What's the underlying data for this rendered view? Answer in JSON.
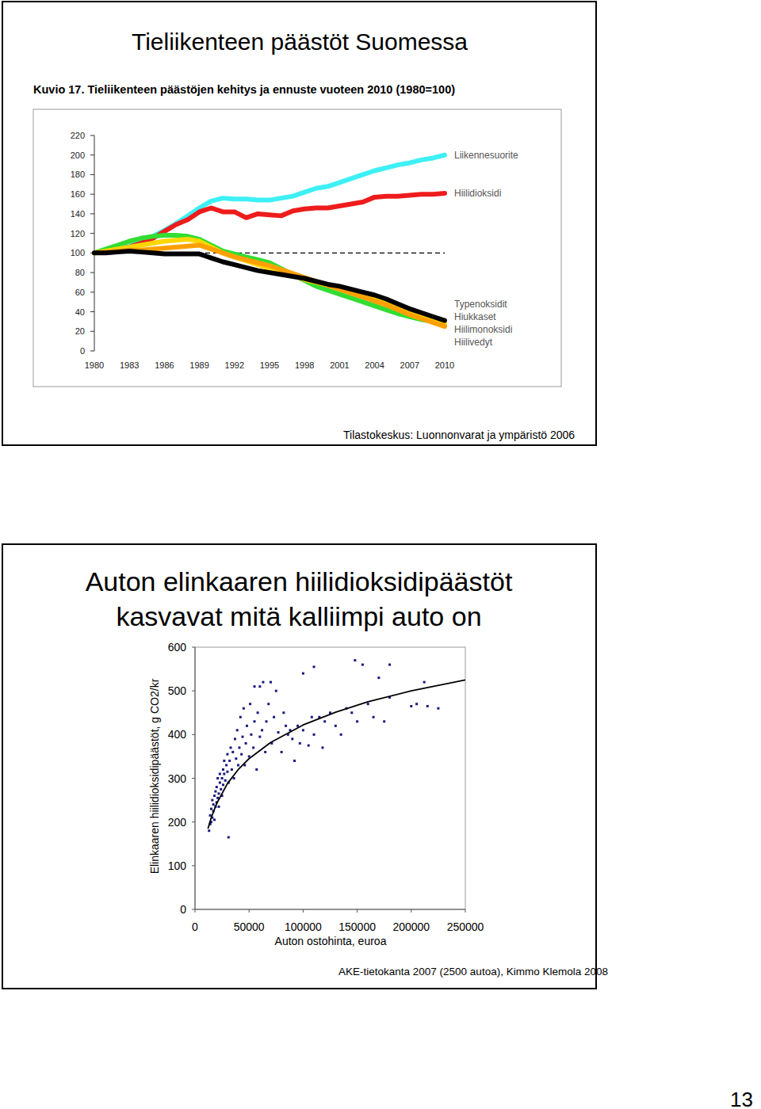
{
  "page_number": "13",
  "chart_data": [
    {
      "type": "line",
      "heading": "Tieliikenteen päästöt Suomessa",
      "title": "Kuvio 17. Tieliikenteen päästöjen kehitys ja ennuste vuoteen 2010 (1980=100)",
      "source": "Tilastokeskus: Luonnonvarat ja ympäristö 2006",
      "x": [
        1980,
        1981,
        1982,
        1983,
        1984,
        1985,
        1986,
        1987,
        1988,
        1989,
        1990,
        1991,
        1992,
        1993,
        1994,
        1995,
        1996,
        1997,
        1998,
        1999,
        2000,
        2001,
        2002,
        2003,
        2004,
        2005,
        2006,
        2007,
        2008,
        2009,
        2010
      ],
      "xlim": [
        1980,
        2010
      ],
      "xticks": [
        1980,
        1983,
        1986,
        1989,
        1992,
        1995,
        1998,
        2001,
        2004,
        2007,
        2010
      ],
      "ylim": [
        0,
        220
      ],
      "yticks": [
        0,
        20,
        40,
        60,
        80,
        100,
        120,
        140,
        160,
        180,
        200,
        220
      ],
      "baseline": 100,
      "grid": false,
      "legend": "right",
      "series": [
        {
          "name": "Liikennesuorite",
          "color": "#3df0f5",
          "values": [
            100,
            102,
            104,
            107,
            111,
            117,
            123,
            130,
            138,
            146,
            153,
            156,
            155,
            155,
            154,
            154,
            156,
            158,
            162,
            166,
            168,
            172,
            176,
            180,
            184,
            187,
            190,
            192,
            195,
            197,
            200
          ]
        },
        {
          "name": "Hiilidioksidi",
          "color": "#ee1c1c",
          "values": [
            100,
            102,
            104,
            106,
            110,
            115,
            122,
            129,
            134,
            142,
            146,
            142,
            142,
            136,
            140,
            139,
            138,
            143,
            145,
            146,
            146,
            148,
            150,
            152,
            157,
            158,
            158,
            159,
            160,
            160,
            161
          ]
        },
        {
          "name": "Typenoksidit",
          "color": "#33dd33",
          "values": [
            100,
            104,
            108,
            112,
            115,
            117,
            118,
            118,
            117,
            114,
            108,
            102,
            99,
            96,
            93,
            90,
            84,
            78,
            72,
            66,
            62,
            58,
            54,
            50,
            46,
            42,
            38,
            35,
            32,
            30,
            28
          ]
        },
        {
          "name": "Hiukkaset",
          "color": "#ffd700",
          "values": [
            100,
            102,
            104,
            106,
            108,
            110,
            112,
            113,
            114,
            112,
            106,
            100,
            96,
            92,
            88,
            84,
            80,
            77,
            73,
            70,
            67,
            64,
            61,
            57,
            53,
            49,
            45,
            40,
            36,
            32,
            28
          ]
        },
        {
          "name": "Hiilimonoksidi",
          "color": "#ffa000",
          "values": [
            100,
            101,
            102,
            103,
            103,
            104,
            105,
            106,
            107,
            108,
            104,
            100,
            96,
            93,
            90,
            87,
            83,
            79,
            75,
            71,
            67,
            63,
            59,
            55,
            51,
            47,
            42,
            37,
            33,
            29,
            25
          ]
        },
        {
          "name": "Hiilivedyt",
          "color": "#000000",
          "values": [
            100,
            100,
            101,
            102,
            101,
            100,
            99,
            99,
            99,
            99,
            95,
            91,
            88,
            85,
            82,
            80,
            78,
            76,
            74,
            71,
            68,
            66,
            63,
            60,
            57,
            53,
            48,
            43,
            39,
            35,
            31
          ]
        }
      ]
    },
    {
      "type": "scatter",
      "title": [
        "Auton elinkaaren hiilidioksidipäästöt",
        "kasvavat mitä kalliimpi auto on"
      ],
      "x_label": "Auton ostohinta, euroa",
      "y_label": "Elinkaaren hiilidioksidipäästöt, g CO2/kr",
      "source": "AKE-tietokanta 2007 (2500 autoa), Kimmo Klemola 2008",
      "xlim": [
        0,
        250000
      ],
      "xticks": [
        0,
        50000,
        100000,
        150000,
        200000,
        250000
      ],
      "ylim": [
        0,
        600
      ],
      "yticks": [
        0,
        100,
        200,
        300,
        400,
        500,
        600
      ],
      "grid": false,
      "series": [
        {
          "type": "scatter",
          "color": "#1a1a80",
          "marker": "square",
          "x": [
            13000,
            14000,
            14000,
            15000,
            15000,
            16000,
            16000,
            17000,
            17000,
            18000,
            18000,
            19000,
            19000,
            20000,
            20000,
            21000,
            21000,
            22000,
            22000,
            23000,
            23000,
            24000,
            25000,
            25000,
            26000,
            26000,
            27000,
            27000,
            28000,
            29000,
            30000,
            30000,
            31000,
            31000,
            32000,
            33000,
            34000,
            35000,
            36000,
            37000,
            38000,
            39000,
            40000,
            41000,
            42000,
            43000,
            44000,
            45000,
            46000,
            47000,
            48000,
            50000,
            51000,
            52000,
            54000,
            55000,
            55000,
            57000,
            58000,
            60000,
            60000,
            62000,
            63000,
            65000,
            66000,
            68000,
            70000,
            71000,
            73000,
            75000,
            77000,
            80000,
            82000,
            84000,
            86000,
            88000,
            90000,
            92000,
            95000,
            97000,
            100000,
            100000,
            105000,
            108000,
            110000,
            110000,
            115000,
            118000,
            120000,
            125000,
            130000,
            135000,
            140000,
            145000,
            148000,
            150000,
            155000,
            160000,
            165000,
            170000,
            175000,
            180000,
            180000,
            200000,
            205000,
            212000,
            215000,
            225000
          ],
          "values": [
            180,
            195,
            215,
            200,
            230,
            210,
            250,
            225,
            240,
            205,
            260,
            235,
            270,
            245,
            280,
            255,
            300,
            265,
            235,
            290,
            310,
            275,
            300,
            260,
            320,
            285,
            310,
            340,
            295,
            330,
            315,
            355,
            290,
            165,
            340,
            370,
            320,
            360,
            300,
            390,
            345,
            410,
            330,
            370,
            440,
            355,
            395,
            460,
            330,
            380,
            420,
            350,
            470,
            400,
            370,
            430,
            510,
            320,
            450,
            395,
            510,
            410,
            520,
            360,
            430,
            470,
            520,
            380,
            440,
            500,
            405,
            360,
            450,
            420,
            400,
            410,
            390,
            340,
            420,
            380,
            410,
            540,
            375,
            440,
            400,
            555,
            440,
            370,
            430,
            450,
            420,
            400,
            460,
            450,
            570,
            430,
            560,
            470,
            440,
            530,
            430,
            485,
            560,
            465,
            470,
            520,
            465,
            460
          ]
        },
        {
          "type": "line",
          "color": "#000000",
          "x": [
            12000,
            15000,
            20000,
            30000,
            40000,
            50000,
            70000,
            100000,
            130000,
            160000,
            200000,
            250000
          ],
          "values": [
            185,
            210,
            242,
            288,
            320,
            345,
            382,
            422,
            451,
            475,
            500,
            525
          ]
        }
      ]
    }
  ]
}
